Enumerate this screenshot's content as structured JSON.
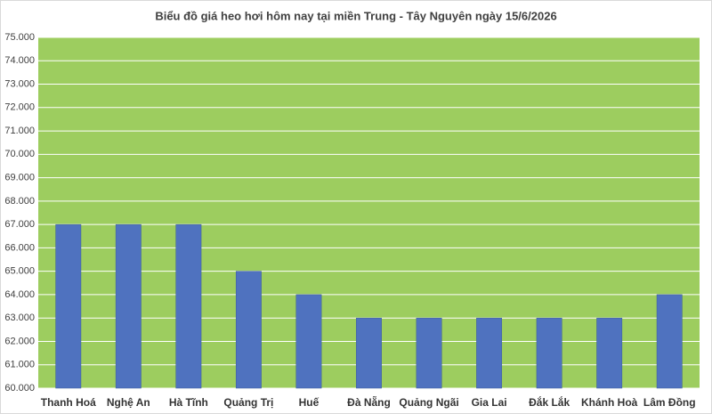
{
  "chart_data": {
    "type": "bar",
    "title": "Biểu đồ giá heo hơi hôm nay tại miền Trung - Tây Nguyên ngày 15/6/2026",
    "categories": [
      "Thanh Hoá",
      "Nghệ An",
      "Hà Tĩnh",
      "Quảng Trị",
      "Huế",
      "Đà Nẵng",
      "Quảng Ngãi",
      "Gia Lai",
      "Đắk Lắk",
      "Khánh Hoà",
      "Lâm Đồng"
    ],
    "values": [
      67000,
      67000,
      67000,
      65000,
      64000,
      63000,
      63000,
      63000,
      63000,
      63000,
      64000
    ],
    "color": "#4f72bf",
    "plot_color": "#9dcd5f",
    "ylim": [
      60000,
      75000
    ],
    "yticks": [
      {
        "value": 60000,
        "label": "60.000"
      },
      {
        "value": 61000,
        "label": "61.000"
      },
      {
        "value": 62000,
        "label": "62.000"
      },
      {
        "value": 63000,
        "label": "63.000"
      },
      {
        "value": 64000,
        "label": "64.000"
      },
      {
        "value": 65000,
        "label": "65.000"
      },
      {
        "value": 66000,
        "label": "66.000"
      },
      {
        "value": 67000,
        "label": "67.000"
      },
      {
        "value": 68000,
        "label": "68.000"
      },
      {
        "value": 69000,
        "label": "69.000"
      },
      {
        "value": 70000,
        "label": "70.000"
      },
      {
        "value": 71000,
        "label": "71.000"
      },
      {
        "value": 72000,
        "label": "72.000"
      },
      {
        "value": 73000,
        "label": "73.000"
      },
      {
        "value": 74000,
        "label": "74.000"
      },
      {
        "value": 75000,
        "label": "75.000"
      }
    ],
    "grid": true
  }
}
